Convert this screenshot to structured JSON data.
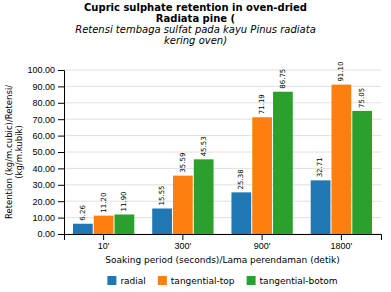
{
  "chart_data": {
    "type": "bar",
    "title": "Cupric sulphate retention in oven-dried\nRadiata pine (\nRetensi tembaga sulfat pada kayu Pinus radiata\nkering oven)",
    "xlabel": "Soaking period (seconds)/Lama perendaman (detik)",
    "ylabel": "Retention (kg/m.cubic)/Retensi/\n(kg/m.kubik)",
    "categories": [
      "10'",
      "300'",
      "900'",
      "1800'"
    ],
    "series": [
      {
        "name": "radial",
        "values": [
          6.26,
          15.55,
          25.38,
          32.71
        ],
        "value_labels": [
          "6.26",
          "15.55",
          "25.38",
          "32.71"
        ]
      },
      {
        "name": "tangential-top",
        "values": [
          11.2,
          35.59,
          71.19,
          91.1
        ],
        "value_labels": [
          "11.20",
          "35.59",
          "71.19",
          "91.10"
        ]
      },
      {
        "name": "tangential-botom",
        "values": [
          11.9,
          45.53,
          86.75,
          75.05
        ],
        "value_labels": [
          "11.90",
          "45.53",
          "86.75",
          "75.05"
        ]
      }
    ],
    "ylim": [
      0,
      100
    ],
    "yticks": [
      {
        "value": 0,
        "label": "0.00"
      },
      {
        "value": 10,
        "label": "10.00"
      },
      {
        "value": 20,
        "label": "20.00"
      },
      {
        "value": 30,
        "label": "30.00"
      },
      {
        "value": 40,
        "label": "40.00"
      },
      {
        "value": 50,
        "label": "50.00"
      },
      {
        "value": 60,
        "label": "60.00"
      },
      {
        "value": 70,
        "label": "70.00"
      },
      {
        "value": 80,
        "label": "80.00"
      },
      {
        "value": 90,
        "label": "90.00"
      },
      {
        "value": 100,
        "label": "100.00"
      }
    ],
    "grid": true,
    "data_labels": true,
    "legend": "bottom"
  }
}
